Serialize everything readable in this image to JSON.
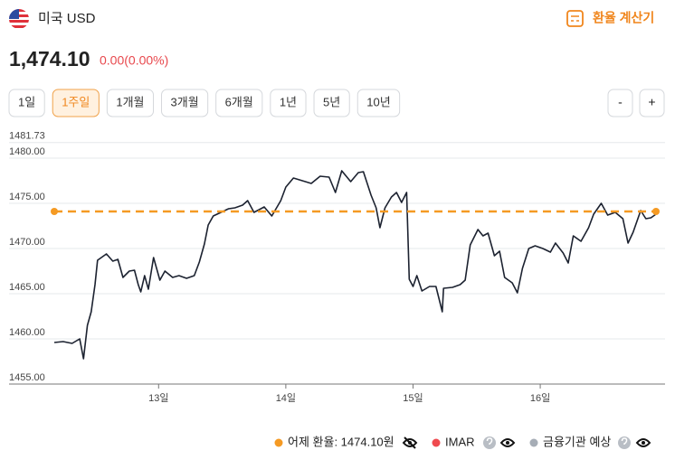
{
  "header": {
    "currency": "미국 USD",
    "calculator": "환율 계산기"
  },
  "price": {
    "value": "1,474.10",
    "change": "0.00(0.00%)"
  },
  "ranges": [
    "1일",
    "1주일",
    "1개월",
    "3개월",
    "6개월",
    "1년",
    "5년",
    "10년"
  ],
  "selected_range": 1,
  "zoom": [
    "-",
    "+"
  ],
  "chart_data": {
    "type": "line",
    "x": [
      12.18,
      12.25,
      12.32,
      12.38,
      12.41,
      12.44,
      12.47,
      12.5,
      12.52,
      12.55,
      12.59,
      12.64,
      12.68,
      12.72,
      12.77,
      12.81,
      12.84,
      12.86,
      12.89,
      12.92,
      12.96,
      13.01,
      13.05,
      13.11,
      13.16,
      13.22,
      13.28,
      13.32,
      13.36,
      13.39,
      13.43,
      13.49,
      13.55,
      13.6,
      13.66,
      13.7,
      13.75,
      13.79,
      13.83,
      13.89,
      13.96,
      14.0,
      14.06,
      14.13,
      14.2,
      14.27,
      14.34,
      14.39,
      14.44,
      14.51,
      14.57,
      14.61,
      14.67,
      14.71,
      14.74,
      14.78,
      14.83,
      14.87,
      14.91,
      14.95,
      14.97,
      15.0,
      15.03,
      15.07,
      15.13,
      15.18,
      15.23,
      15.24,
      15.31,
      15.37,
      15.41,
      15.45,
      15.51,
      15.55,
      15.59,
      15.64,
      15.68,
      15.72,
      15.78,
      15.82,
      15.86,
      15.91,
      15.96,
      16.02,
      16.08,
      16.12,
      16.18,
      16.22,
      16.26,
      16.32,
      16.38,
      16.42,
      16.48,
      16.53,
      16.59,
      16.65,
      16.69,
      16.73,
      16.79,
      16.83,
      16.87,
      16.91
    ],
    "series": [
      {
        "color": "#1c2230",
        "values": [
          1459.6,
          1459.7,
          1459.5,
          1460.0,
          1457.8,
          1461.5,
          1463.0,
          1466.0,
          1468.7,
          1469.0,
          1469.4,
          1468.6,
          1468.8,
          1466.8,
          1467.5,
          1467.6,
          1466.0,
          1465.2,
          1467.0,
          1465.5,
          1469.0,
          1466.5,
          1467.5,
          1466.8,
          1467.0,
          1466.7,
          1467.0,
          1468.5,
          1470.5,
          1472.6,
          1473.6,
          1474.0,
          1474.4,
          1474.5,
          1474.8,
          1475.3,
          1474.0,
          1474.3,
          1474.6,
          1473.6,
          1475.3,
          1476.8,
          1477.8,
          1477.5,
          1477.2,
          1478.0,
          1477.9,
          1476.2,
          1478.6,
          1477.4,
          1478.4,
          1478.5,
          1475.9,
          1474.5,
          1472.3,
          1474.5,
          1475.7,
          1476.2,
          1475.1,
          1476.2,
          1466.6,
          1465.8,
          1467.0,
          1465.3,
          1465.8,
          1465.8,
          1463.0,
          1465.6,
          1465.7,
          1466.0,
          1466.5,
          1470.4,
          1472.1,
          1471.4,
          1471.7,
          1469.2,
          1469.7,
          1466.8,
          1466.2,
          1465.1,
          1467.8,
          1470.0,
          1470.3,
          1470.0,
          1469.6,
          1470.6,
          1469.5,
          1468.4,
          1471.4,
          1470.8,
          1472.3,
          1473.8,
          1475.0,
          1473.7,
          1474.0,
          1473.3,
          1470.6,
          1471.8,
          1474.2,
          1473.3,
          1473.4,
          1473.8
        ]
      }
    ],
    "reference": {
      "name": "어제 환율: 1474.10원",
      "value": 1474.1,
      "color": "#f59a23"
    },
    "legend": [
      {
        "name": "IMAR",
        "color": "#ef4a4f"
      },
      {
        "name": "금융기관 예상",
        "color": "#a6adb6"
      }
    ],
    "xlim": [
      12.18,
      16.91
    ],
    "xticks": [
      {
        "value": 13,
        "label": "13일"
      },
      {
        "value": 14,
        "label": "14일"
      },
      {
        "value": 15,
        "label": "15일"
      },
      {
        "value": 16,
        "label": "16일"
      }
    ],
    "ylim": [
      1455,
      1481.73
    ],
    "yticks": [
      {
        "value": 1455,
        "label": "1455.00"
      },
      {
        "value": 1460,
        "label": "1460.00"
      },
      {
        "value": 1465,
        "label": "1465.00"
      },
      {
        "value": 1470,
        "label": "1470.00"
      },
      {
        "value": 1475,
        "label": "1475.00"
      },
      {
        "value": 1480,
        "label": "1480.00"
      },
      1481.73
    ],
    "grid": true
  }
}
